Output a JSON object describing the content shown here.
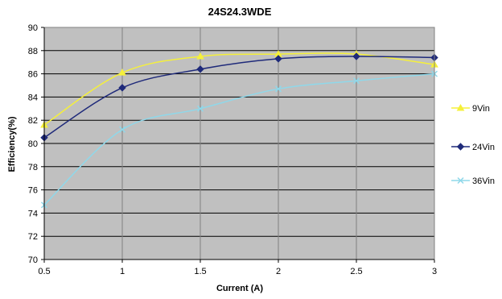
{
  "chart_data": {
    "type": "line",
    "title": "24S24.3WDE",
    "xlabel": "Current (A)",
    "ylabel": "Efficiency(%)",
    "xlim": [
      0.5,
      3
    ],
    "ylim": [
      70,
      90
    ],
    "xticks": [
      "0.5",
      "1",
      "1.5",
      "2",
      "2.5",
      "3"
    ],
    "yticks": [
      "70",
      "72",
      "74",
      "76",
      "78",
      "80",
      "82",
      "84",
      "86",
      "88",
      "90"
    ],
    "grid": true,
    "legend": "right",
    "plot_background": "#c0c0c0",
    "x": [
      0.5,
      1,
      1.5,
      2,
      2.5,
      3
    ],
    "series": [
      {
        "name": "9Vin",
        "color": "#f5f03a",
        "marker": "triangle",
        "values": [
          81.6,
          86.1,
          87.5,
          87.7,
          87.7,
          86.8
        ]
      },
      {
        "name": "24Vin",
        "color": "#1f2a7a",
        "marker": "diamond",
        "values": [
          80.5,
          84.8,
          86.4,
          87.3,
          87.5,
          87.4
        ]
      },
      {
        "name": "36Vin",
        "color": "#8fd8ea",
        "marker": "x",
        "values": [
          74.7,
          81.2,
          83.0,
          84.7,
          85.4,
          86.0
        ]
      }
    ]
  }
}
